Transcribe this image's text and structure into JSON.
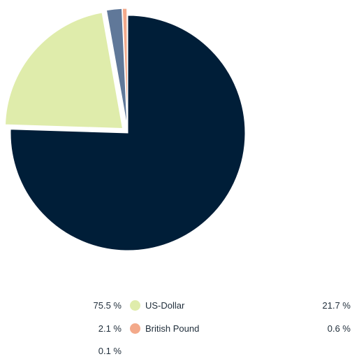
{
  "chart_data": {
    "type": "pie",
    "slices": [
      {
        "label": "",
        "value": 75.5,
        "value_text": "75.5 %",
        "color": "#001e38",
        "exploded": false
      },
      {
        "label": "US-Dollar",
        "value": 21.7,
        "value_text": "21.7 %",
        "color": "#dfecab",
        "exploded": true
      },
      {
        "label": "",
        "value": 2.1,
        "value_text": "2.1 %",
        "color": "#607899",
        "exploded": true
      },
      {
        "label": "British Pound",
        "value": 0.6,
        "value_text": "0.6 %",
        "color": "#f3a98a",
        "exploded": true
      },
      {
        "label": "",
        "value": 0.1,
        "value_text": "0.1 %",
        "color": "#c9c9c9",
        "exploded": true
      }
    ],
    "legend_placement": "bottom"
  }
}
